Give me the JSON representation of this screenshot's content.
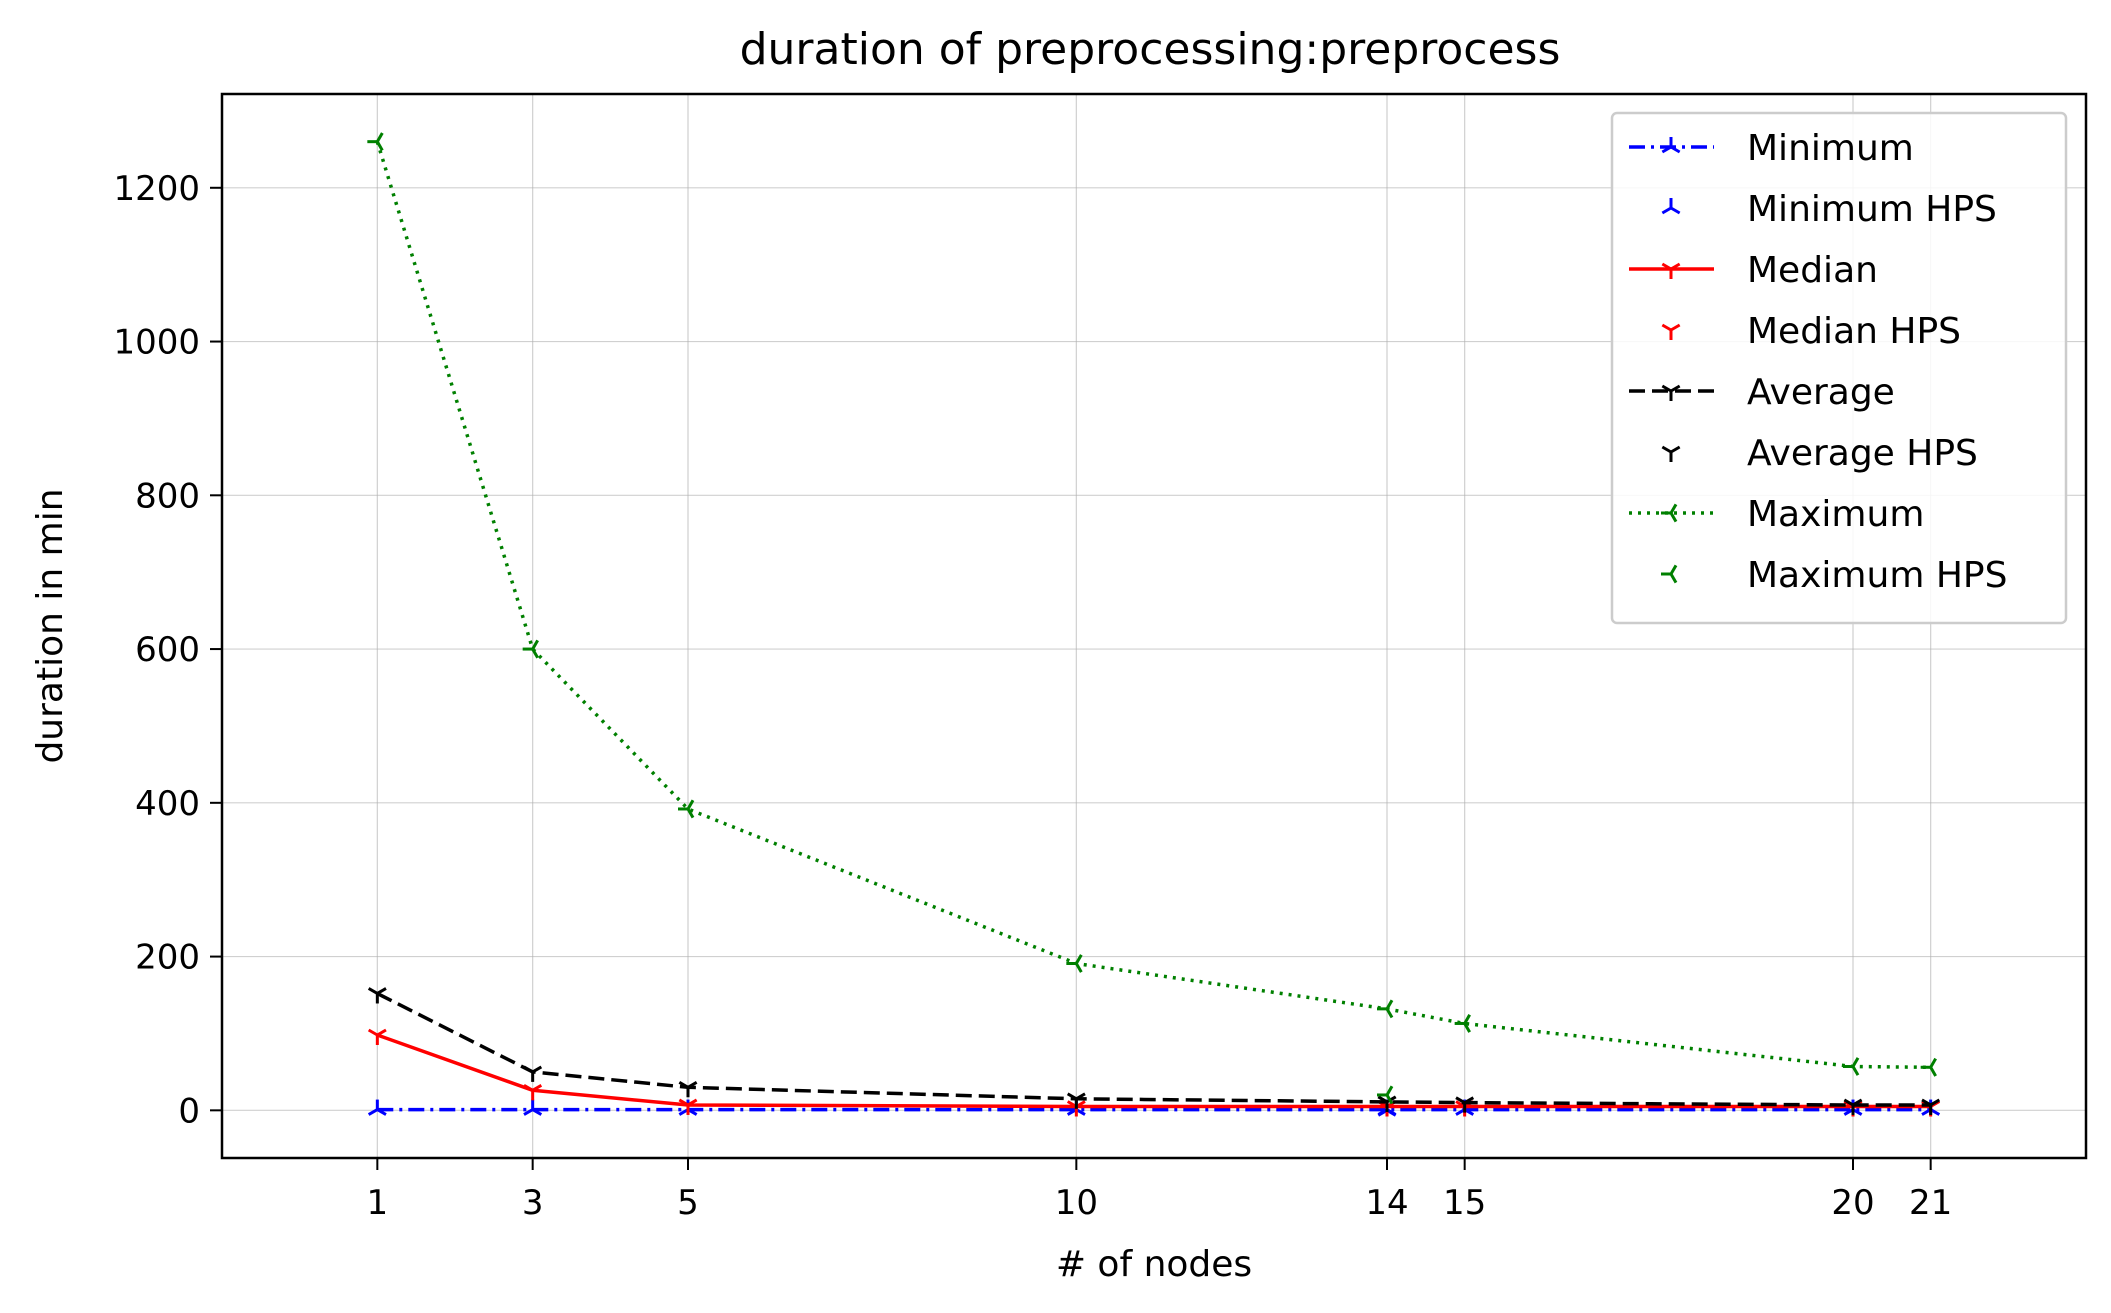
{
  "chart_data": {
    "type": "line",
    "title": "duration of preprocessing:preprocess",
    "xlabel": "# of nodes",
    "ylabel": "duration in min",
    "x_ticks": [
      1,
      3,
      5,
      10,
      14,
      15,
      20,
      21
    ],
    "y_ticks": [
      0,
      200,
      400,
      600,
      800,
      1000,
      1200
    ],
    "xlim": [
      -1,
      23
    ],
    "ylim": [
      -62,
      1322
    ],
    "grid": true,
    "legend_position": "top-right",
    "x": [
      1,
      3,
      5,
      10,
      14,
      15,
      20,
      21
    ],
    "series": [
      {
        "name": "Minimum",
        "color": "#0000ff",
        "line_style": "dashdot",
        "marker": "tri-up",
        "values": [
          1,
          1,
          1,
          1,
          1,
          1,
          1,
          1
        ]
      },
      {
        "name": "Minimum HPS",
        "color": "#0000ff",
        "line_style": "none",
        "marker": "tri-up",
        "x": [
          14
        ],
        "values": [
          0
        ]
      },
      {
        "name": "Median",
        "color": "#ff0000",
        "line_style": "solid",
        "marker": "tri-right",
        "values": [
          98,
          26,
          7,
          5,
          5,
          5,
          5,
          5
        ]
      },
      {
        "name": "Median HPS",
        "color": "#ff0000",
        "line_style": "none",
        "marker": "tri-right",
        "x": [
          14
        ],
        "values": [
          5
        ]
      },
      {
        "name": "Average",
        "color": "#000000",
        "line_style": "dashed",
        "marker": "tri-down",
        "values": [
          152,
          50,
          30,
          15,
          11,
          10,
          7,
          7
        ]
      },
      {
        "name": "Average HPS",
        "color": "#000000",
        "line_style": "none",
        "marker": "tri-down",
        "x": [
          14
        ],
        "values": [
          11
        ]
      },
      {
        "name": "Maximum",
        "color": "#008000",
        "line_style": "dotted",
        "marker": "tri-left",
        "values": [
          1260,
          600,
          392,
          191,
          132,
          113,
          57,
          56
        ]
      },
      {
        "name": "Maximum HPS",
        "color": "#008000",
        "line_style": "none",
        "marker": "tri-left",
        "x": [
          14
        ],
        "values": [
          20
        ]
      }
    ]
  }
}
